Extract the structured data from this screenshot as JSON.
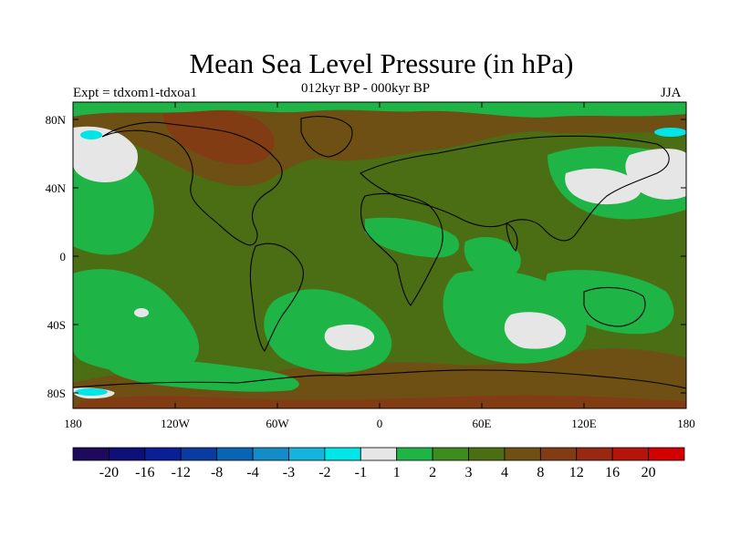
{
  "header": {
    "title": "Mean Sea Level Pressure (in hPa)",
    "subtitle": "012kyr BP - 000kyr BP",
    "experiment": "Expt = tdxom1-tdxoa1",
    "season": "JJA"
  },
  "map": {
    "lat_ticks": [
      "80N",
      "40N",
      "0",
      "40S",
      "80S"
    ],
    "lon_ticks": [
      "180",
      "120W",
      "60W",
      "0",
      "60E",
      "120E",
      "180"
    ]
  },
  "colorbar": {
    "colors": [
      "#1e0a5a",
      "#0f0f78",
      "#0a1e96",
      "#0a3ca0",
      "#0a64b4",
      "#148cc8",
      "#14b4dc",
      "#00e6e6",
      "#e6e6e6",
      "#1eb446",
      "#3c8c1e",
      "#4b6e14",
      "#6e5014",
      "#823c14",
      "#962814",
      "#b4140a",
      "#d20000"
    ],
    "labels": [
      "-20",
      "-16",
      "-12",
      "-8",
      "-4",
      "-3",
      "-2",
      "-1",
      "1",
      "2",
      "3",
      "4",
      "8",
      "12",
      "16",
      "20"
    ]
  },
  "colors": {
    "green_light": "#1eb446",
    "green_mid": "#3c8c1e",
    "green_olive": "#4b6e14",
    "brown": "#6e5014",
    "brown_dark": "#823c14",
    "white_band": "#e6e6e6",
    "cyan": "#00e6e6"
  }
}
